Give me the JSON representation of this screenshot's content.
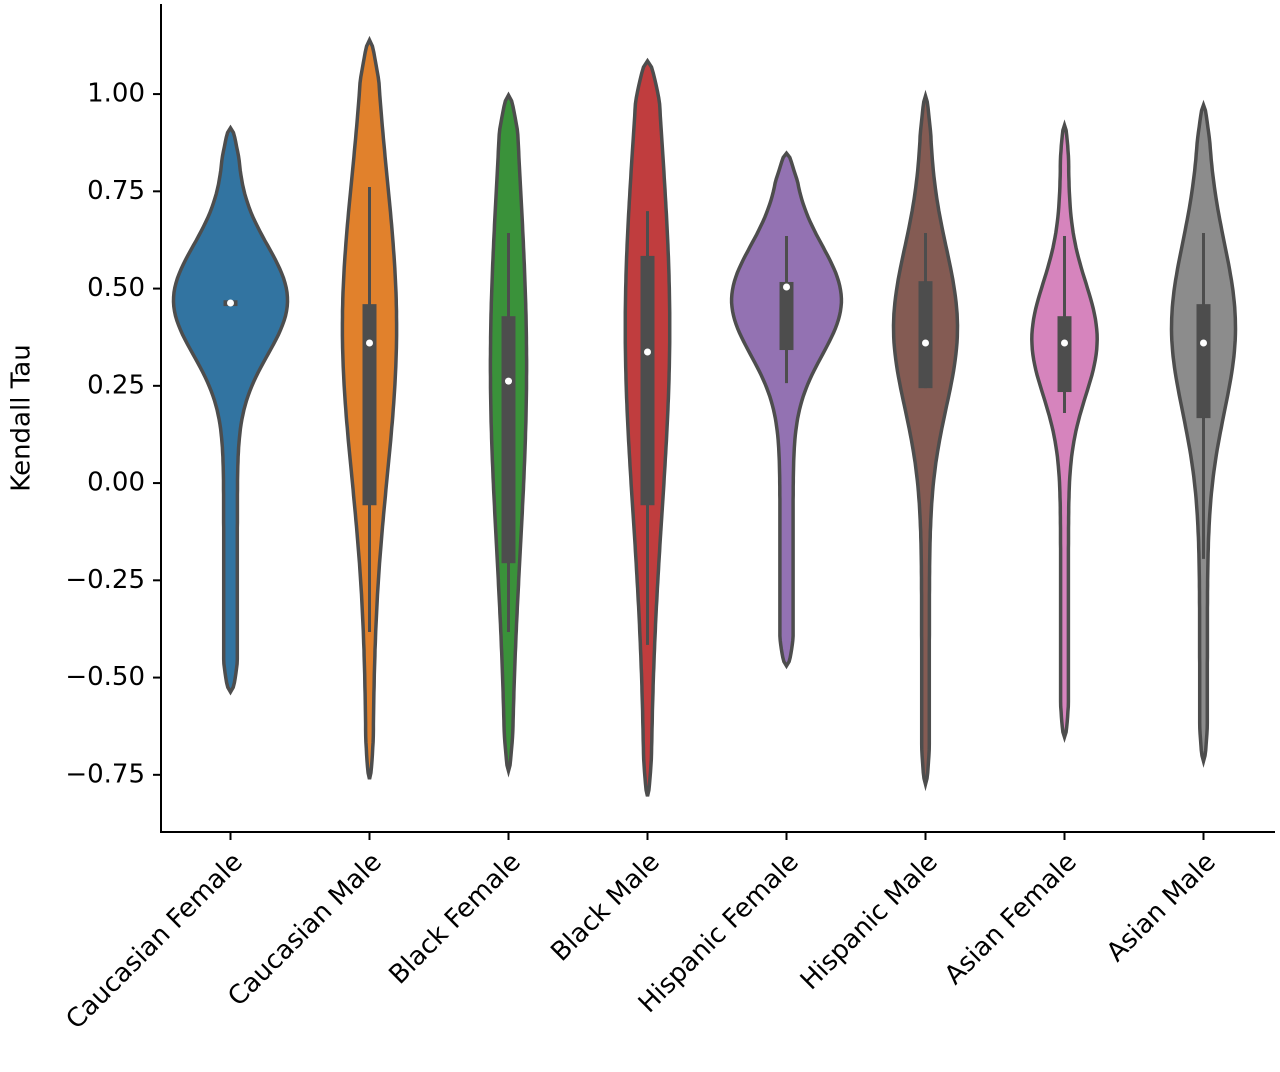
{
  "chart_data": {
    "type": "violin",
    "y_label": "Kendall Tau",
    "categories": [
      "Caucasian Female",
      "Caucasian Male",
      "Black Female",
      "Black Male",
      "Hispanic Female",
      "Hispanic Male",
      "Asian Female",
      "Asian Male"
    ],
    "colors": [
      "#3274a1",
      "#e1812c",
      "#3a923a",
      "#c03d3e",
      "#9372b2",
      "#845b53",
      "#d684bd",
      "#8c8c8c"
    ],
    "min": [
      -0.537,
      -0.761,
      -0.74,
      -0.805,
      -0.47,
      -0.774,
      -0.653,
      -0.715
    ],
    "max": [
      0.913,
      1.139,
      0.997,
      1.085,
      0.848,
      0.995,
      0.92,
      0.972
    ],
    "mode": [
      0.47,
      0.4,
      0.3,
      0.4,
      0.47,
      0.4,
      0.37,
      0.4
    ],
    "width": [
      0.82,
      0.39,
      0.26,
      0.32,
      0.79,
      0.46,
      0.47,
      0.46
    ],
    "whisker_low": [
      0.455,
      -0.383,
      -0.383,
      -0.416,
      0.257,
      0.244,
      0.18,
      -0.195
    ],
    "q1": [
      0.455,
      -0.057,
      -0.206,
      -0.057,
      0.342,
      0.244,
      0.234,
      0.167
    ],
    "median": [
      0.463,
      0.36,
      0.262,
      0.337,
      0.504,
      0.36,
      0.36,
      0.36
    ],
    "q3": [
      0.47,
      0.46,
      0.429,
      0.584,
      0.517,
      0.519,
      0.429,
      0.46
    ],
    "whisker_high": [
      0.47,
      0.761,
      0.643,
      0.699,
      0.635,
      0.643,
      0.635,
      0.643
    ],
    "ylim": [
      -0.897,
      1.229
    ],
    "yticks": [
      {
        "value": -0.75,
        "label": "−0.75"
      },
      {
        "value": -0.5,
        "label": "−0.50"
      },
      {
        "value": -0.25,
        "label": "−0.25"
      },
      {
        "value": 0,
        "label": "0.00"
      },
      {
        "value": 0.25,
        "label": "0.25"
      },
      {
        "value": 0.5,
        "label": "0.50"
      },
      {
        "value": 0.75,
        "label": "0.75"
      },
      {
        "value": 1,
        "label": "1.00"
      }
    ]
  }
}
